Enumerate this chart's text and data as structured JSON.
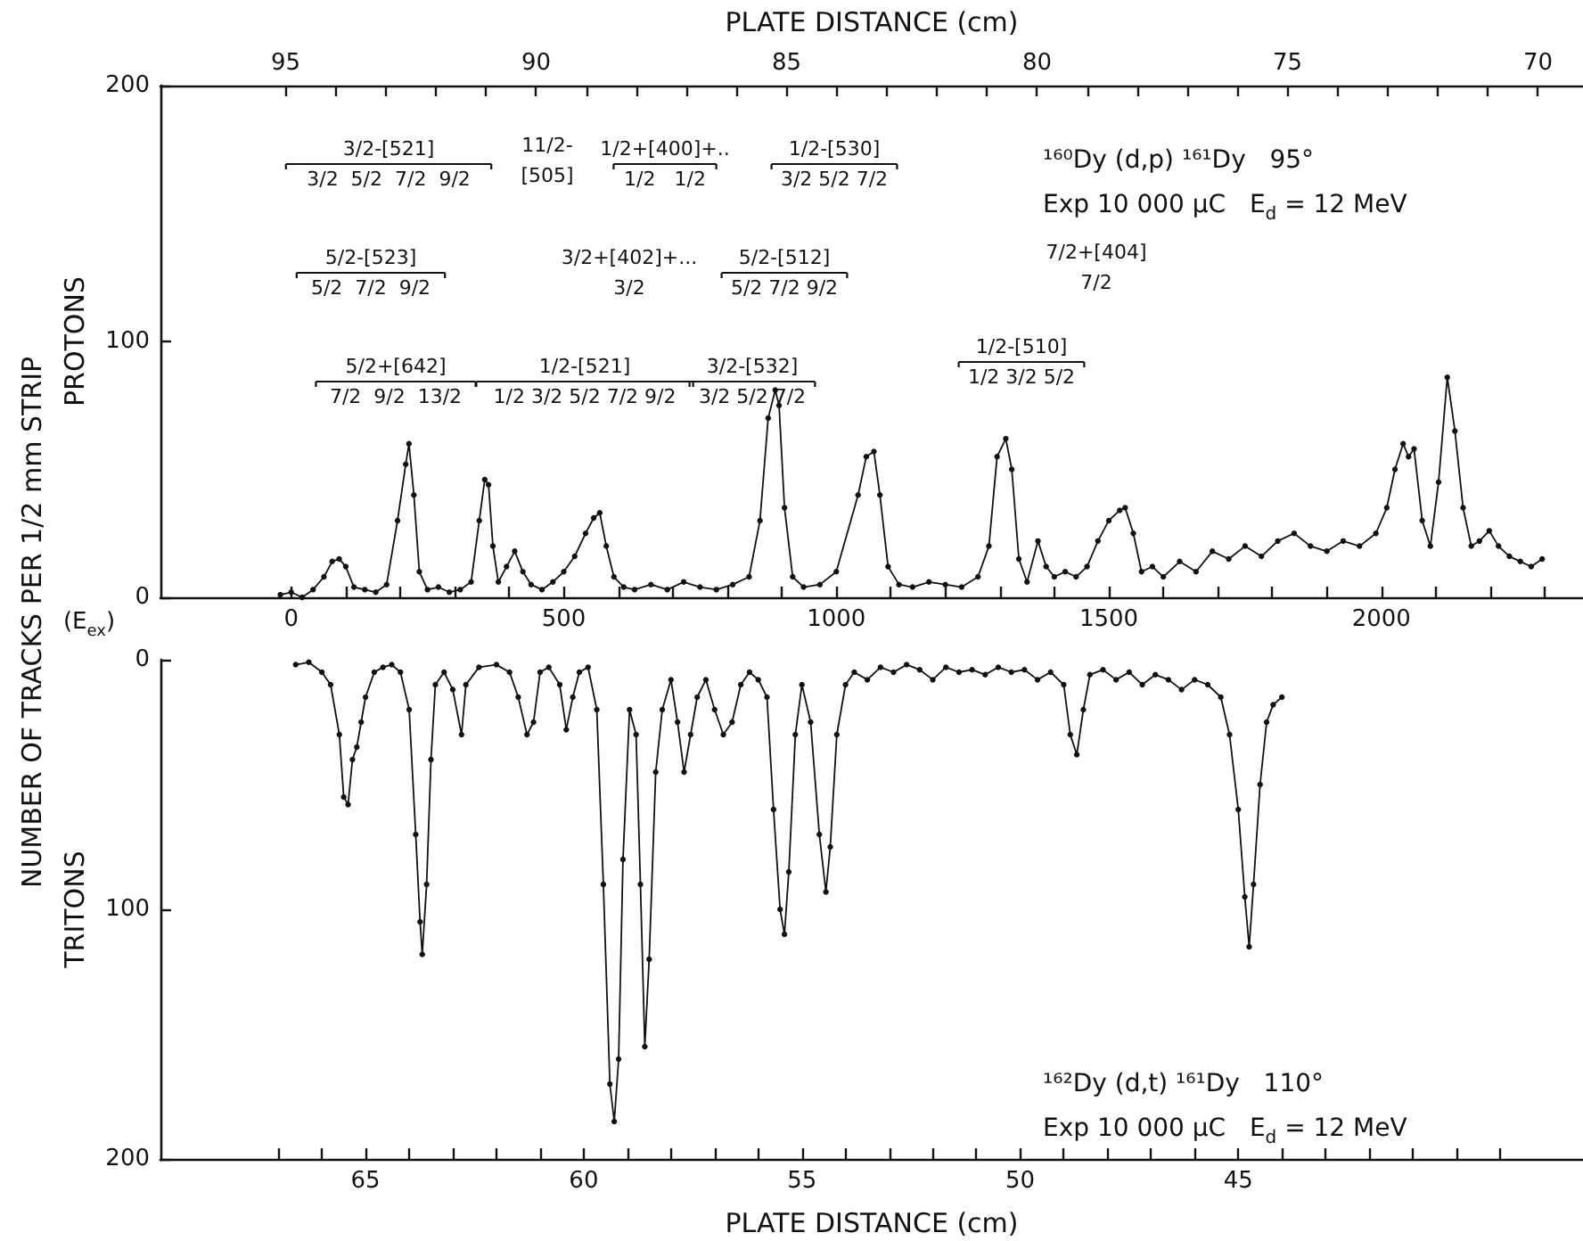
{
  "chart_data": [
    {
      "type": "line",
      "xlabel": "(E$_{ex}$)",
      "x2label": "PLATE DISTANCE (cm)",
      "ylabel": "NUMBER OF TRACKS PER 1/2 mm STRIP\nPROTONS",
      "xlim": [
        -240,
        2370
      ],
      "xticks": [
        0,
        {
          "value": 100,
          "label": null
        },
        {
          "value": 200,
          "label": null
        },
        {
          "value": 300,
          "label": null
        },
        {
          "value": 400,
          "label": null
        },
        500,
        {
          "value": 600,
          "label": null
        },
        {
          "value": 700,
          "label": null
        },
        {
          "value": 800,
          "label": null
        },
        {
          "value": 900,
          "label": null
        },
        1000,
        {
          "value": 1100,
          "label": null
        },
        {
          "value": 1200,
          "label": null
        },
        {
          "value": 1300,
          "label": null
        },
        {
          "value": 1400,
          "label": null
        },
        1500,
        {
          "value": 1600,
          "label": null
        },
        {
          "value": 1700,
          "label": null
        },
        {
          "value": 1800,
          "label": null
        },
        {
          "value": 1900,
          "label": null
        },
        2000,
        {
          "value": 2100,
          "label": null
        },
        {
          "value": 2200,
          "label": null
        },
        {
          "value": 2300,
          "label": null
        }
      ],
      "x2lim": [
        97.5,
        69.1
      ],
      "x2ticks": [
        95,
        {
          "value": 94,
          "label": null
        },
        {
          "value": 93,
          "label": null
        },
        {
          "value": 92,
          "label": null
        },
        {
          "value": 91,
          "label": null
        },
        90,
        {
          "value": 89,
          "label": null
        },
        {
          "value": 88,
          "label": null
        },
        {
          "value": 87,
          "label": null
        },
        {
          "value": 86,
          "label": null
        },
        85,
        {
          "value": 84,
          "label": null
        },
        {
          "value": 83,
          "label": null
        },
        {
          "value": 82,
          "label": null
        },
        {
          "value": 81,
          "label": null
        },
        80,
        {
          "value": 79,
          "label": null
        },
        {
          "value": 78,
          "label": null
        },
        {
          "value": 77,
          "label": null
        },
        {
          "value": 76,
          "label": null
        },
        75,
        {
          "value": 74,
          "label": null
        },
        {
          "value": 73,
          "label": null
        },
        {
          "value": 72,
          "label": null
        },
        {
          "value": 71,
          "label": null
        },
        70
      ],
      "ylim": [
        0,
        200
      ],
      "yticks": [
        0,
        100,
        200
      ],
      "marker": "circle",
      "line_style": "solid",
      "series": [
        {
          "color": "#111111",
          "x": [
            -20,
            0,
            20,
            40,
            60,
            75,
            88,
            100,
            115,
            135,
            155,
            175,
            195,
            210,
            216,
            225,
            235,
            250,
            270,
            290,
            310,
            330,
            345,
            355,
            362,
            370,
            380,
            395,
            410,
            425,
            440,
            460,
            480,
            500,
            520,
            540,
            555,
            566,
            578,
            592,
            610,
            630,
            660,
            690,
            720,
            750,
            780,
            810,
            840,
            860,
            875,
            888,
            895,
            905,
            920,
            940,
            970,
            1000,
            1040,
            1055,
            1069,
            1080,
            1095,
            1115,
            1140,
            1170,
            1200,
            1230,
            1260,
            1280,
            1295,
            1311,
            1322,
            1335,
            1350,
            1370,
            1385,
            1400,
            1420,
            1440,
            1460,
            1480,
            1500,
            1520,
            1530,
            1545,
            1560,
            1580,
            1600,
            1630,
            1660,
            1690,
            1720,
            1750,
            1780,
            1810,
            1840,
            1870,
            1900,
            1930,
            1960,
            1990,
            2010,
            2025,
            2040,
            2050,
            2060,
            2075,
            2090,
            2105,
            2121,
            2135,
            2150,
            2165,
            2180,
            2198,
            2215,
            2235,
            2255,
            2275,
            2295
          ],
          "values": [
            1,
            2,
            0,
            3,
            8,
            14,
            15,
            12,
            4,
            3,
            2,
            5,
            30,
            52,
            60,
            40,
            10,
            3,
            4,
            2,
            3,
            6,
            30,
            46,
            44,
            20,
            6,
            12,
            18,
            10,
            5,
            3,
            6,
            10,
            16,
            25,
            31,
            33,
            20,
            8,
            4,
            3,
            5,
            3,
            6,
            4,
            3,
            5,
            8,
            30,
            70,
            81,
            75,
            35,
            8,
            4,
            5,
            10,
            40,
            55,
            57,
            40,
            12,
            5,
            4,
            6,
            5,
            4,
            8,
            20,
            55,
            62,
            50,
            15,
            6,
            22,
            12,
            8,
            10,
            8,
            12,
            22,
            30,
            34,
            35,
            25,
            10,
            12,
            8,
            14,
            10,
            18,
            15,
            20,
            16,
            22,
            25,
            20,
            18,
            22,
            20,
            25,
            35,
            50,
            60,
            55,
            58,
            30,
            20,
            45,
            86,
            65,
            35,
            20,
            22,
            26,
            20,
            16,
            14,
            12,
            15
          ]
        }
      ],
      "annotations": [
        "¹⁶⁰Dy (d,p) ¹⁶¹Dy   95°",
        "Exp 10 000 μC   E$_{d}$ = 12 MeV",
        "3/2-[521]\n3/2  5/2  7/2  9/2",
        "11/2-\n[505]",
        "1/2+[400]+..\n1/2   1/2",
        "1/2-[530]\n3/2 5/2 7/2",
        "5/2-[523]\n5/2  7/2  9/2",
        "3/2+[402]+...\n3/2",
        "5/2-[512]\n5/2 7/2 9/2",
        "5/2+[642]\n7/2  9/2  13/2",
        "1/2-[521]\n1/2 3/2 5/2 7/2 9/2",
        "3/2-[532]\n3/2 5/2 7/2",
        "1/2-[510]\n1/2 3/2 5/2",
        "7/2+[404]\n7/2"
      ]
    },
    {
      "type": "line",
      "xlabel": "PLATE DISTANCE (cm)",
      "ylabel": "TRITONS",
      "xlim": [
        69.7,
        37.1
      ],
      "xticks": [
        {
          "value": 67,
          "label": null
        },
        {
          "value": 66,
          "label": null
        },
        65,
        {
          "value": 64,
          "label": null
        },
        {
          "value": 63,
          "label": null
        },
        {
          "value": 62,
          "label": null
        },
        {
          "value": 61,
          "label": null
        },
        60,
        {
          "value": 59,
          "label": null
        },
        {
          "value": 58,
          "label": null
        },
        {
          "value": 57,
          "label": null
        },
        {
          "value": 56,
          "label": null
        },
        55,
        {
          "value": 54,
          "label": null
        },
        {
          "value": 53,
          "label": null
        },
        {
          "value": 52,
          "label": null
        },
        {
          "value": 51,
          "label": null
        },
        50,
        {
          "value": 49,
          "label": null
        },
        {
          "value": 48,
          "label": null
        },
        {
          "value": 47,
          "label": null
        },
        {
          "value": 46,
          "label": null
        },
        45,
        {
          "value": 44,
          "label": null
        },
        {
          "value": 43,
          "label": null
        },
        {
          "value": 42,
          "label": null
        },
        {
          "value": 41,
          "label": null
        },
        {
          "value": 40,
          "label": null
        },
        {
          "value": 39,
          "label": null
        }
      ],
      "ylim": [
        200,
        0
      ],
      "yticks": [
        0,
        100,
        200
      ],
      "marker": "circle",
      "line_style": "solid",
      "series": [
        {
          "color": "#111111",
          "x": [
            66.6,
            66.3,
            66.0,
            65.8,
            65.6,
            65.5,
            65.4,
            65.3,
            65.2,
            65.1,
            65.0,
            64.8,
            64.6,
            64.4,
            64.2,
            64.0,
            63.85,
            63.75,
            63.7,
            63.6,
            63.5,
            63.4,
            63.2,
            63.0,
            62.8,
            62.7,
            62.4,
            62.0,
            61.7,
            61.5,
            61.3,
            61.15,
            61.0,
            60.8,
            60.55,
            60.4,
            60.25,
            60.1,
            59.9,
            59.7,
            59.55,
            59.4,
            59.3,
            59.2,
            59.1,
            58.95,
            58.8,
            58.7,
            58.6,
            58.5,
            58.35,
            58.2,
            58.0,
            57.85,
            57.7,
            57.55,
            57.4,
            57.2,
            57.0,
            56.8,
            56.6,
            56.4,
            56.2,
            56.0,
            55.8,
            55.65,
            55.5,
            55.4,
            55.3,
            55.15,
            55.0,
            54.8,
            54.6,
            54.45,
            54.35,
            54.2,
            54.0,
            53.8,
            53.5,
            53.2,
            52.9,
            52.6,
            52.3,
            52.0,
            51.7,
            51.4,
            51.1,
            50.8,
            50.5,
            50.2,
            49.9,
            49.6,
            49.3,
            49.0,
            48.85,
            48.7,
            48.55,
            48.4,
            48.1,
            47.8,
            47.5,
            47.2,
            46.9,
            46.6,
            46.3,
            46.0,
            45.7,
            45.4,
            45.2,
            45.0,
            44.85,
            44.75,
            44.65,
            44.5,
            44.35,
            44.2,
            44.0
          ],
          "values": [
            2,
            1,
            5,
            10,
            30,
            55,
            58,
            40,
            35,
            25,
            15,
            5,
            3,
            2,
            5,
            20,
            70,
            105,
            118,
            90,
            40,
            10,
            5,
            12,
            30,
            10,
            3,
            2,
            5,
            15,
            30,
            25,
            5,
            3,
            10,
            28,
            15,
            5,
            3,
            20,
            90,
            170,
            185,
            160,
            80,
            20,
            30,
            90,
            155,
            120,
            45,
            20,
            8,
            25,
            45,
            30,
            15,
            8,
            20,
            30,
            25,
            10,
            5,
            8,
            15,
            60,
            100,
            110,
            85,
            30,
            10,
            25,
            70,
            93,
            75,
            30,
            10,
            5,
            8,
            3,
            5,
            2,
            4,
            8,
            3,
            5,
            4,
            6,
            3,
            5,
            4,
            8,
            5,
            10,
            30,
            38,
            20,
            6,
            4,
            8,
            5,
            10,
            6,
            8,
            12,
            8,
            10,
            15,
            30,
            60,
            95,
            115,
            90,
            50,
            25,
            18,
            15
          ]
        }
      ],
      "annotations": [
        "¹⁶²Dy (d,t) ¹⁶¹Dy   110°",
        "Exp 10 000 μC   E$_{d}$ = 12 MeV"
      ]
    }
  ]
}
